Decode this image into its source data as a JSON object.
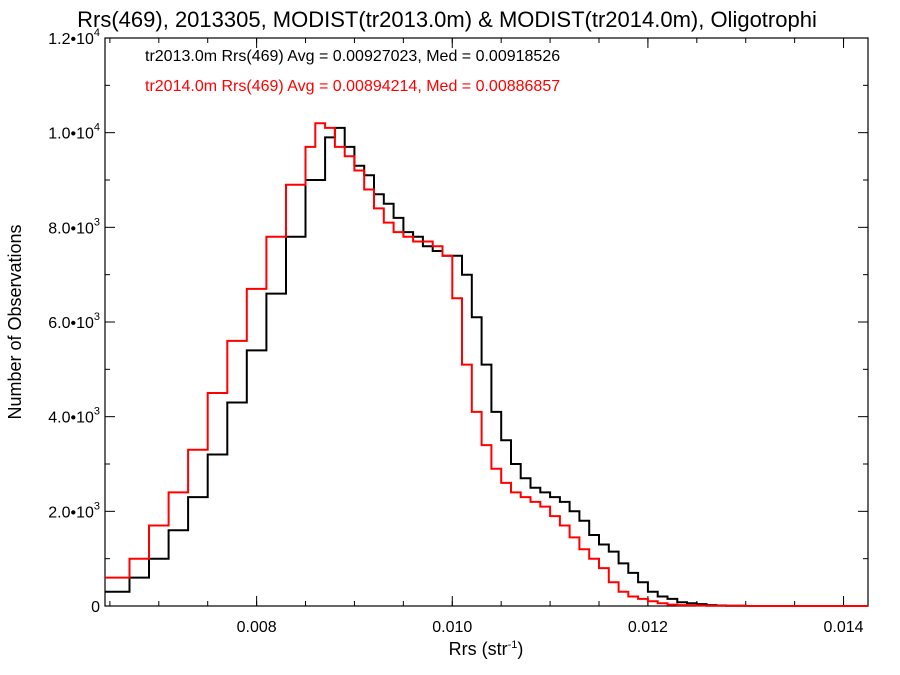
{
  "chart_data": {
    "type": "line",
    "title": "Rrs(469), 2013305, MODIST(tr2013.0m) & MODIST(tr2014.0m), Oligotrophi",
    "xlabel": "Rrs (str",
    "xlabel_sup": "-1",
    "xlabel_tail": ")",
    "ylabel": "Number of Observations",
    "xlim": [
      0.00645,
      0.01425
    ],
    "ylim": [
      0,
      12000
    ],
    "x_ticks": [
      {
        "value": 0.008,
        "label": "0.008"
      },
      {
        "value": 0.01,
        "label": "0.010"
      },
      {
        "value": 0.012,
        "label": "0.012"
      },
      {
        "value": 0.014,
        "label": "0.014"
      }
    ],
    "y_ticks": [
      {
        "value": 0,
        "label": "0",
        "sup": ""
      },
      {
        "value": 2000,
        "label": "2.0•10",
        "sup": "3"
      },
      {
        "value": 4000,
        "label": "4.0•10",
        "sup": "3"
      },
      {
        "value": 6000,
        "label": "6.0•10",
        "sup": "3"
      },
      {
        "value": 8000,
        "label": "8.0•10",
        "sup": "3"
      },
      {
        "value": 10000,
        "label": "1.0•10",
        "sup": "4"
      },
      {
        "value": 12000,
        "label": "1.2•10",
        "sup": "4"
      }
    ],
    "legend_placement": "top-left",
    "series": [
      {
        "name": "tr2013.0m Rrs(469) Avg = 0.00927023, Med = 0.00918526",
        "color": "#000000",
        "x": [
          0.00645,
          0.0067,
          0.0069,
          0.0071,
          0.0073,
          0.0075,
          0.0077,
          0.0079,
          0.0081,
          0.0083,
          0.0085,
          0.0087,
          0.0088,
          0.0089,
          0.009,
          0.0091,
          0.0092,
          0.0093,
          0.0094,
          0.0095,
          0.0096,
          0.0097,
          0.0098,
          0.0099,
          0.01,
          0.0101,
          0.0102,
          0.0103,
          0.0104,
          0.0105,
          0.0106,
          0.0107,
          0.0108,
          0.0109,
          0.011,
          0.0111,
          0.0112,
          0.0113,
          0.0114,
          0.0115,
          0.0116,
          0.0117,
          0.0118,
          0.0119,
          0.012,
          0.0121,
          0.0122,
          0.0123,
          0.0124,
          0.0125,
          0.0126,
          0.0127,
          0.0128,
          0.0129,
          0.013,
          0.0132,
          0.0134,
          0.0136,
          0.0138,
          0.01425
        ],
        "values": [
          300,
          600,
          1000,
          1600,
          2300,
          3200,
          4300,
          5400,
          6600,
          7800,
          9000,
          9900,
          10100,
          9700,
          9300,
          9100,
          8700,
          8500,
          8200,
          7900,
          7800,
          7600,
          7500,
          7400,
          7400,
          7000,
          6100,
          5100,
          4100,
          3500,
          3000,
          2700,
          2500,
          2400,
          2300,
          2200,
          2000,
          1800,
          1500,
          1300,
          1150,
          900,
          700,
          500,
          300,
          200,
          150,
          80,
          60,
          40,
          20,
          10,
          5,
          5,
          0,
          0,
          0,
          0,
          0,
          0
        ]
      },
      {
        "name": "tr2014.0m Rrs(469) Avg = 0.00894214, Med = 0.00886857",
        "color": "#ff0000",
        "x": [
          0.00645,
          0.0067,
          0.0069,
          0.0071,
          0.0073,
          0.0075,
          0.0077,
          0.0079,
          0.0081,
          0.0083,
          0.0085,
          0.0086,
          0.0087,
          0.0088,
          0.0089,
          0.009,
          0.0091,
          0.0092,
          0.0093,
          0.0094,
          0.0095,
          0.0096,
          0.0097,
          0.0098,
          0.0099,
          0.01,
          0.0101,
          0.0102,
          0.0103,
          0.0104,
          0.0105,
          0.0106,
          0.0107,
          0.0108,
          0.0109,
          0.011,
          0.0111,
          0.0112,
          0.0113,
          0.0114,
          0.0115,
          0.0116,
          0.0117,
          0.0118,
          0.0119,
          0.012,
          0.0121,
          0.0122,
          0.0123,
          0.0124,
          0.0125,
          0.0126,
          0.0128,
          0.013,
          0.0132,
          0.0134,
          0.0136,
          0.0138,
          0.014,
          0.01425
        ],
        "values": [
          600,
          1000,
          1700,
          2400,
          3300,
          4500,
          5600,
          6700,
          7800,
          8900,
          9700,
          10200,
          10100,
          9700,
          9500,
          9200,
          8800,
          8400,
          8100,
          7900,
          7800,
          7700,
          7700,
          7600,
          7400,
          6500,
          5100,
          4100,
          3400,
          2900,
          2600,
          2400,
          2300,
          2200,
          2100,
          1900,
          1700,
          1450,
          1200,
          1000,
          800,
          500,
          300,
          200,
          150,
          100,
          60,
          30,
          20,
          15,
          10,
          5,
          5,
          0,
          0,
          0,
          0,
          0,
          0,
          0
        ]
      }
    ]
  }
}
